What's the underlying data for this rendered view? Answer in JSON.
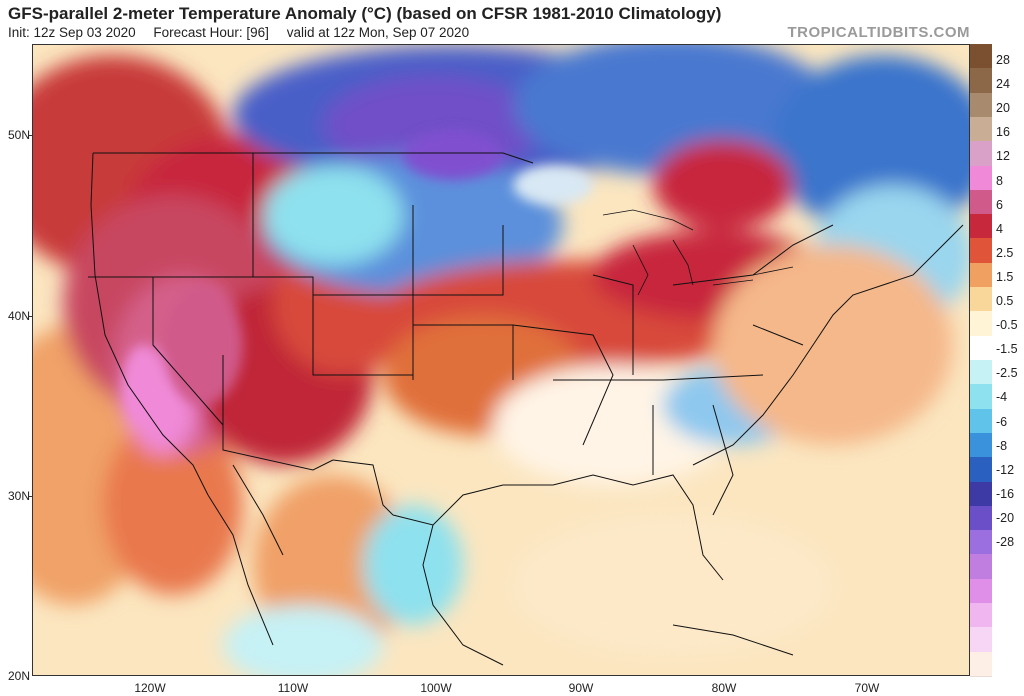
{
  "header": {
    "title": "GFS-parallel 2-meter Temperature Anomaly (°C) (based on CFSR 1981-2010 Climatology)",
    "init": "Init: 12z Sep 03 2020",
    "forecast_hour": "Forecast Hour: [96]",
    "valid": "valid at 12z Mon, Sep 07 2020",
    "brand": "TROPICALTIDBITS.COM"
  },
  "axes": {
    "lat_labels": [
      "50N",
      "40N",
      "30N",
      "20N"
    ],
    "lon_labels": [
      "120W",
      "110W",
      "100W",
      "90W",
      "80W",
      "70W"
    ]
  },
  "colorbar": {
    "labels": [
      "28",
      "24",
      "20",
      "16",
      "12",
      "8",
      "6",
      "4",
      "2.5",
      "1.5",
      "0.5",
      "-0.5",
      "-1.5",
      "-2.5",
      "-4",
      "-6",
      "-8",
      "-12",
      "-16",
      "-20",
      "-28"
    ],
    "colors": [
      "#7a5030",
      "#8c6848",
      "#a88a6e",
      "#c9ad95",
      "#d9a0c8",
      "#f08ad8",
      "#d05a8a",
      "#c8283c",
      "#e0553a",
      "#f0a060",
      "#f9d79a",
      "#fff4d6",
      "#ffffff",
      "#c6f1f5",
      "#8ee1ee",
      "#5fc3ea",
      "#3a91dc",
      "#2a61c0",
      "#3d3aa6",
      "#6a4fc8",
      "#9b6fe0",
      "#c07fe0",
      "#e08fe8",
      "#f0b6f0",
      "#f6d6f4",
      "#fdeee6"
    ]
  },
  "colors": {
    "land_border": "#111111",
    "map_frame": "#333333"
  }
}
